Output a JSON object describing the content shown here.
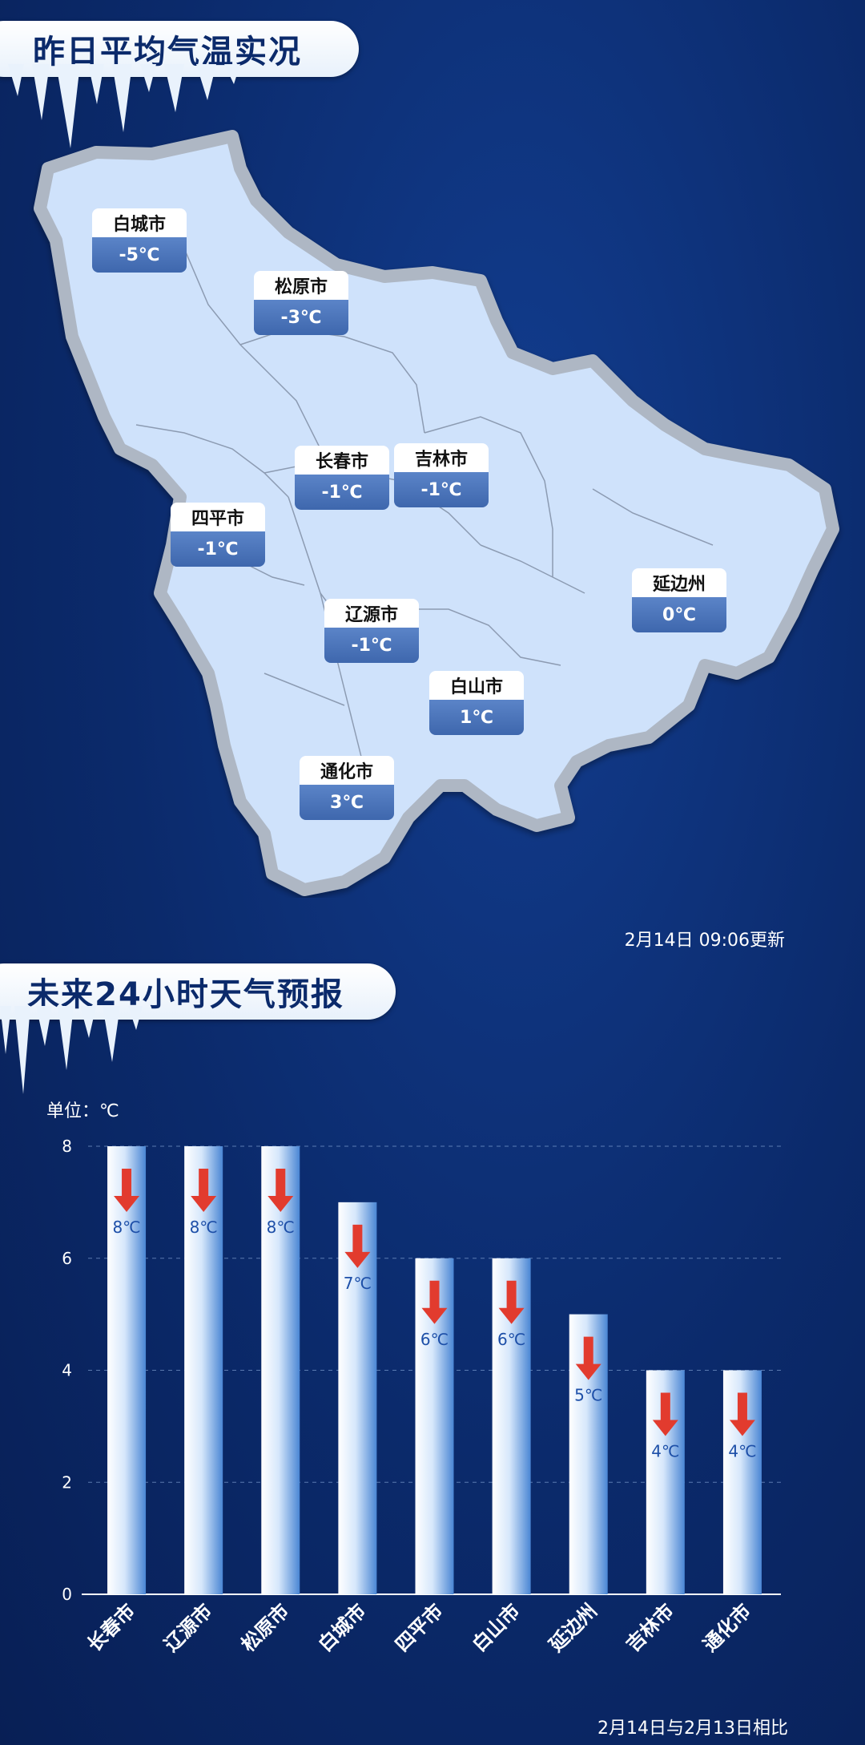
{
  "section1": {
    "title": "昨日平均气温实况",
    "update_time": "2月14日  09:06更新",
    "cities": [
      {
        "name": "白城市",
        "temp": "-5℃"
      },
      {
        "name": "松原市",
        "temp": "-3℃"
      },
      {
        "name": "长春市",
        "temp": "-1℃"
      },
      {
        "name": "吉林市",
        "temp": "-1℃"
      },
      {
        "name": "四平市",
        "temp": "-1℃"
      },
      {
        "name": "辽源市",
        "temp": "-1℃"
      },
      {
        "name": "延边州",
        "temp": "0℃"
      },
      {
        "name": "白山市",
        "temp": "1℃"
      },
      {
        "name": "通化市",
        "temp": "3℃"
      }
    ]
  },
  "section2": {
    "title": "未来24小时天气预报",
    "unit": "单位：℃",
    "compare_note": "2月14日与2月13日相比"
  },
  "colors": {
    "background": "#0b2a6b",
    "map_fill": "#cfe2fb",
    "map_border": "#aeb7c4",
    "label_temp_bg": "#4670b4",
    "bar_light": "#ffffff",
    "bar_dark": "#4a86d4",
    "arrow": "#e23b2e",
    "value_text": "#1d4fa8"
  },
  "chart_data": {
    "type": "bar",
    "categories": [
      "长春市",
      "辽源市",
      "松原市",
      "白城市",
      "四平市",
      "白山市",
      "延边州",
      "吉林市",
      "通化市"
    ],
    "values": [
      8,
      8,
      8,
      7,
      6,
      6,
      5,
      4,
      4
    ],
    "value_labels": [
      "8℃",
      "8℃",
      "8℃",
      "7℃",
      "6℃",
      "6℃",
      "5℃",
      "4℃",
      "4℃"
    ],
    "trend": [
      "down",
      "down",
      "down",
      "down",
      "down",
      "down",
      "down",
      "down",
      "down"
    ],
    "ylim": [
      0,
      8
    ],
    "yticks": [
      0,
      2,
      4,
      6,
      8
    ],
    "grid": true,
    "legend": "none"
  }
}
